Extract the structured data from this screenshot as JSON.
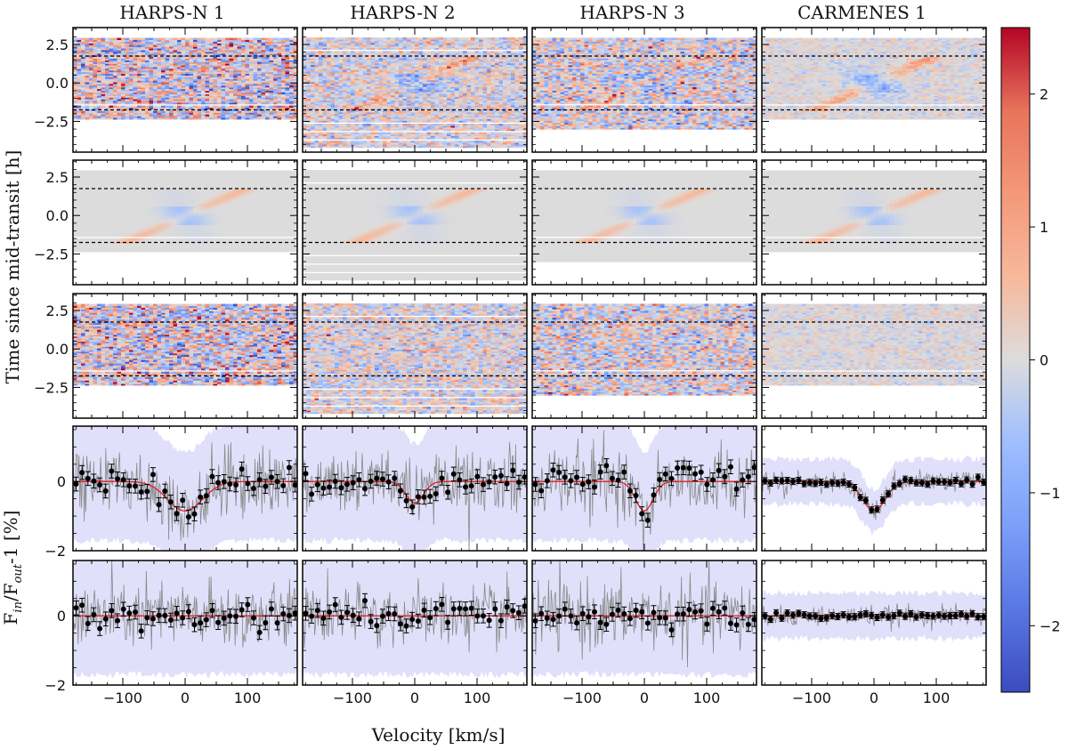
{
  "figure": {
    "columns": [
      "HARPS-N 1",
      "HARPS-N 2",
      "HARPS-N 3",
      "CARMENES 1"
    ],
    "ylabel_maps": "Time since mid-transit [h]",
    "ylabel_profiles_parts": [
      "F",
      "in",
      "/F",
      "out",
      "-1 [%]"
    ],
    "xlabel": "Velocity [km/s]"
  },
  "chart_data": [
    {
      "type": "heatmap",
      "row": "observed residual maps",
      "xlim": [
        -180,
        180
      ],
      "ylim": [
        -4.5,
        3.6
      ],
      "yticks": [
        -2.5,
        0.0,
        2.5
      ],
      "ytick_labels": [
        "−2.5",
        "0.0",
        "2.5"
      ],
      "ingress_egress_hours": [
        1.75,
        -1.75
      ],
      "panels": [
        {
          "name": "HARPS-N 1",
          "time_coverage_h": [
            -2.35,
            2.95
          ],
          "noise": 1.1,
          "signal": 0.4
        },
        {
          "name": "HARPS-N 2",
          "time_coverage_h": [
            -4.3,
            2.95
          ],
          "noise": 0.6,
          "signal": 0.8
        },
        {
          "name": "HARPS-N 3",
          "time_coverage_h": [
            -3.0,
            2.95
          ],
          "noise": 0.8,
          "signal": 0.7
        },
        {
          "name": "CARMENES 1",
          "time_coverage_h": [
            -2.35,
            2.95
          ],
          "noise": 0.25,
          "signal": 0.8
        }
      ]
    },
    {
      "type": "heatmap",
      "row": "model maps",
      "xlim": [
        -180,
        180
      ],
      "ylim": [
        -4.5,
        3.6
      ],
      "yticks": [
        -2.5,
        0.0,
        2.5
      ],
      "ytick_labels": [
        "−2.5",
        "0.0",
        "2.5"
      ],
      "ingress_egress_hours": [
        1.75,
        -1.75
      ]
    },
    {
      "type": "heatmap",
      "row": "residuals after model subtraction",
      "xlim": [
        -180,
        180
      ],
      "ylim": [
        -4.5,
        3.6
      ],
      "yticks": [
        -2.5,
        0.0,
        2.5
      ],
      "ytick_labels": [
        "−2.5",
        "0.0",
        "2.5"
      ],
      "ingress_egress_hours": [
        1.75,
        -1.75
      ]
    },
    {
      "type": "line",
      "row": "in-transit averaged profile",
      "xlim": [
        -180,
        180
      ],
      "ylim": [
        -2,
        1.6
      ],
      "yticks": [
        -2,
        0
      ],
      "xticks": [
        -100,
        0,
        100
      ],
      "xtick_labels": [
        "−100",
        "0",
        "100"
      ],
      "ytick_labels": [
        "−2",
        "0"
      ],
      "model_depth_percent": [
        -0.85,
        -0.62,
        -0.85,
        -0.85
      ],
      "model_width_kms": [
        28,
        14,
        14,
        18
      ]
    },
    {
      "type": "line",
      "row": "residual profile",
      "xlim": [
        -180,
        180
      ],
      "ylim": [
        -2,
        1.6
      ],
      "yticks": [
        -2,
        0
      ],
      "xticks": [
        -100,
        0,
        100
      ],
      "xtick_labels": [
        "−100",
        "0",
        "100"
      ],
      "ytick_labels": [
        "−2",
        "0"
      ]
    }
  ],
  "colorbar": {
    "cmap": "coolwarm",
    "range": [
      -2.5,
      2.5
    ],
    "ticks": [
      2,
      1,
      0,
      -1,
      -2
    ],
    "tick_labels": [
      "2",
      "1",
      "0",
      "−1",
      "−2"
    ]
  }
}
